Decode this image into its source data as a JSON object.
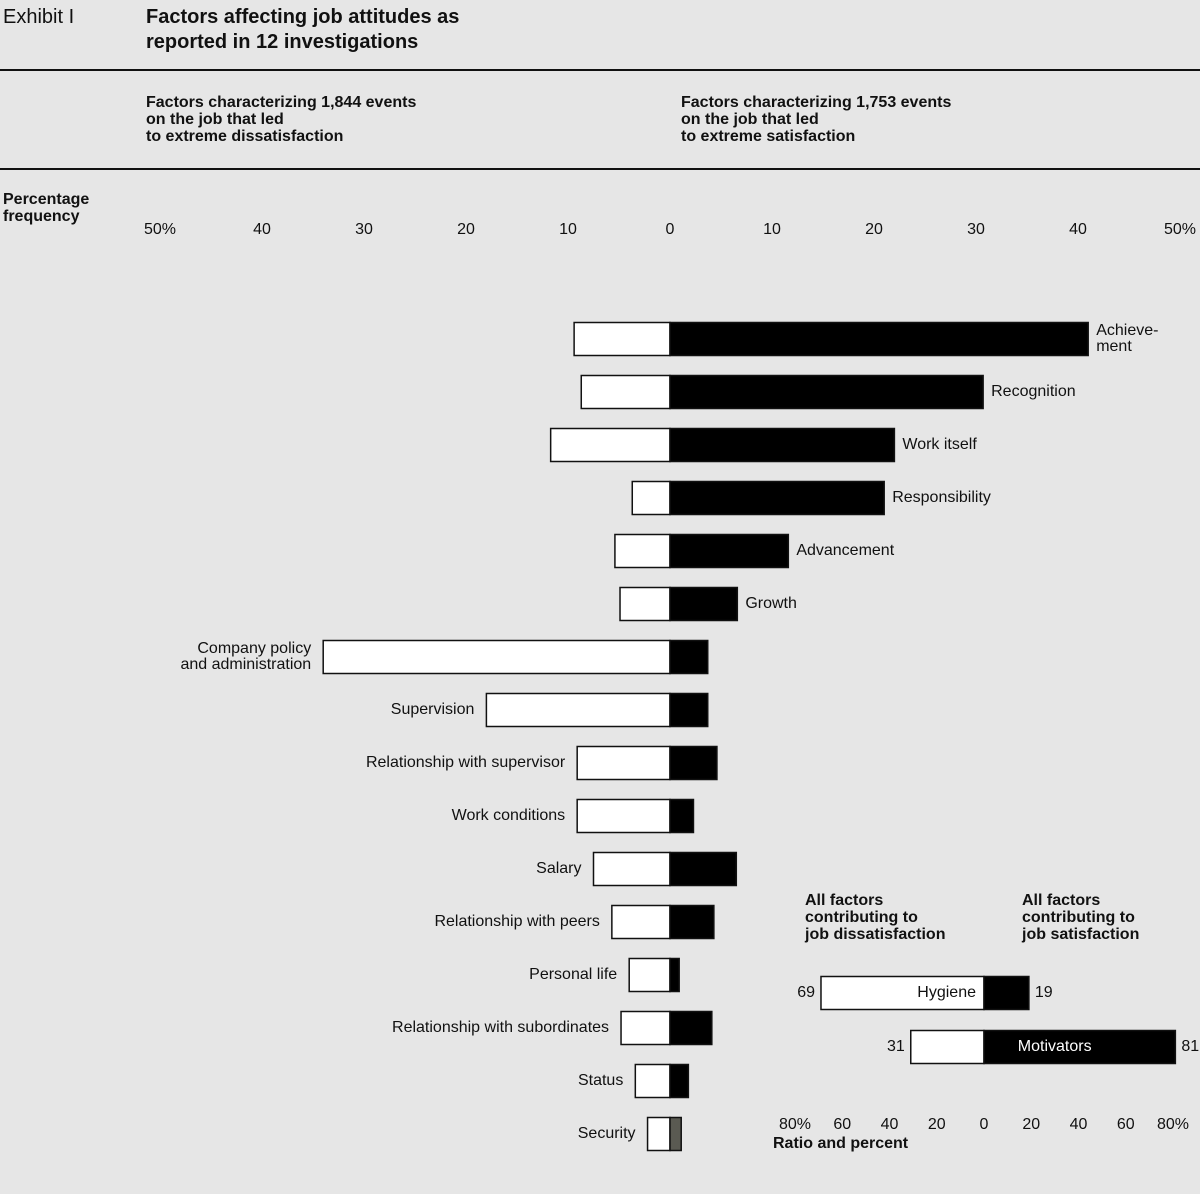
{
  "exhibit": "Exhibit I",
  "title": "Factors affecting job attitudes as\nreported in 12 investigations",
  "chart_data": [
    {
      "type": "diverging_bar",
      "left_header": "Factors characterizing 1,844 events\non the job that led\nto extreme dissatisfaction",
      "right_header": "Factors characterizing 1,753 events\non the job that led\nto extreme satisfaction",
      "axis_label": "Percentage\nfrequency",
      "xlim": [
        -50,
        50
      ],
      "xticks": [
        {
          "value": -50,
          "label": "50%"
        },
        {
          "value": -40,
          "label": "40"
        },
        {
          "value": -30,
          "label": "30"
        },
        {
          "value": -20,
          "label": "20"
        },
        {
          "value": -10,
          "label": "10"
        },
        0,
        10,
        20,
        30,
        40,
        {
          "value": 50,
          "label": "50%"
        }
      ],
      "categories": [
        "Achieve-\nment",
        "Recognition",
        "Work itself",
        "Responsibility",
        "Advancement",
        "Growth",
        "Company policy\nand administration",
        "Supervision",
        "Relationship with supervisor",
        "Work conditions",
        "Salary",
        "Relationship with peers",
        "Personal life",
        "Relationship with subordinates",
        "Status",
        "Security"
      ],
      "series": [
        {
          "color": "#ffffff",
          "values": [
            9.4,
            8.7,
            11.7,
            3.7,
            5.4,
            4.9,
            34,
            18,
            9.1,
            9.1,
            7.5,
            5.7,
            4,
            4.8,
            3.4,
            2.2
          ]
        },
        {
          "color": "#000000",
          "colors": [
            "#000000",
            "#000000",
            "#000000",
            "#000000",
            "#000000",
            "#000000",
            "#000000",
            "#000000",
            "#000000",
            "#000000",
            "#000000",
            "#000000",
            "#000000",
            "#000000",
            "#000000",
            "#5a5a52"
          ],
          "values": [
            41,
            30.7,
            22,
            21,
            11.6,
            6.6,
            3.7,
            3.7,
            4.6,
            2.3,
            6.5,
            4.3,
            0.9,
            4.1,
            1.8,
            1.1
          ]
        }
      ]
    },
    {
      "type": "diverging_bar",
      "left_header": "All factors\ncontributing to\njob dissatisfaction",
      "right_header": "All factors\ncontributing to\njob satisfaction",
      "xlabel": "Ratio and percent",
      "xlim": [
        -80,
        80
      ],
      "xticks": [
        {
          "value": -80,
          "label": "80%"
        },
        {
          "value": -60,
          "label": "60"
        },
        {
          "value": -40,
          "label": "40"
        },
        {
          "value": -20,
          "label": "20"
        },
        0,
        20,
        40,
        60,
        {
          "value": 80,
          "label": "80%"
        }
      ],
      "categories": [
        "Hygiene",
        "Motivators"
      ],
      "series": [
        {
          "color": "#ffffff",
          "values": [
            69,
            31
          ]
        },
        {
          "color": "#000000",
          "values": [
            19,
            81
          ]
        }
      ]
    }
  ]
}
